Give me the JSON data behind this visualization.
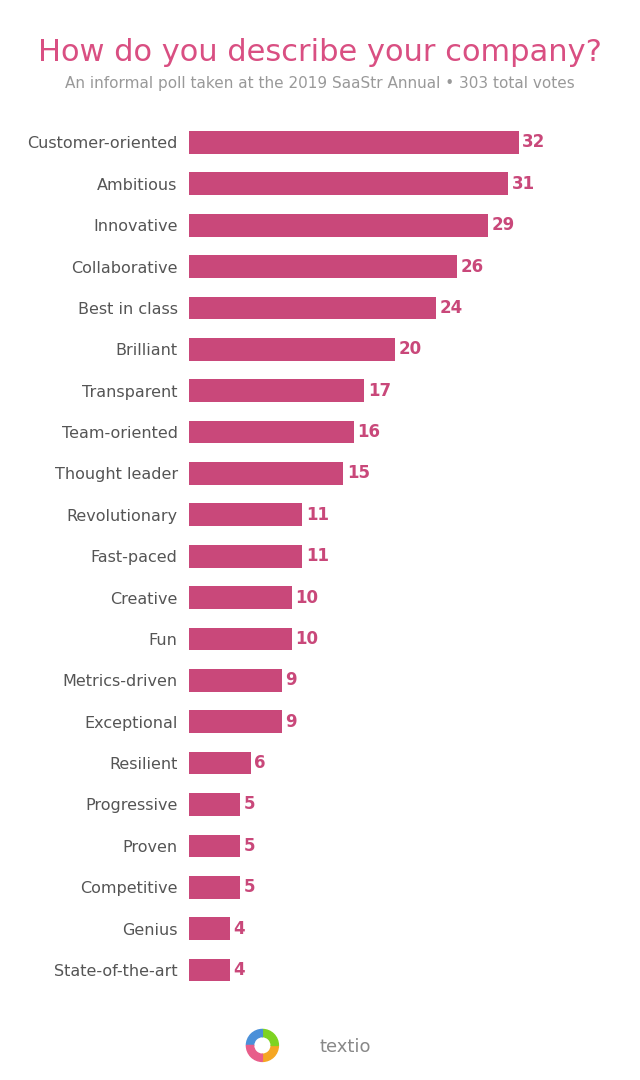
{
  "title": "How do you describe your company?",
  "subtitle": "An informal poll taken at the 2019 SaaStr Annual • 303 total votes",
  "categories": [
    "Customer-oriented",
    "Ambitious",
    "Innovative",
    "Collaborative",
    "Best in class",
    "Brilliant",
    "Transparent",
    "Team-oriented",
    "Thought leader",
    "Revolutionary",
    "Fast-paced",
    "Creative",
    "Fun",
    "Metrics-driven",
    "Exceptional",
    "Resilient",
    "Progressive",
    "Proven",
    "Competitive",
    "Genius",
    "State-of-the-art"
  ],
  "values": [
    32,
    31,
    29,
    26,
    24,
    20,
    17,
    16,
    15,
    11,
    11,
    10,
    10,
    9,
    9,
    6,
    5,
    5,
    5,
    4,
    4
  ],
  "bar_color": "#c9487a",
  "value_color": "#c9487a",
  "title_color": "#d94f82",
  "subtitle_color": "#999999",
  "label_color": "#555555",
  "background_color": "#ffffff",
  "xlim": [
    0,
    36
  ],
  "bar_height": 0.55,
  "title_fontsize": 22,
  "subtitle_fontsize": 11,
  "label_fontsize": 11.5,
  "value_fontsize": 12
}
